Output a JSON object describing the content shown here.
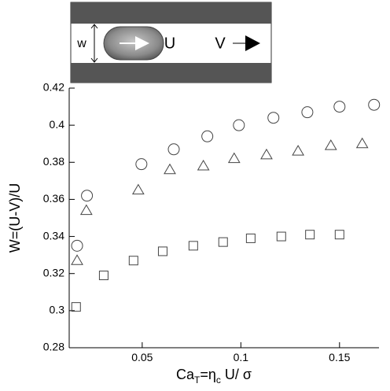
{
  "chart_data": {
    "type": "scatter",
    "xlabel": [
      "Ca",
      "T",
      "=η",
      "c",
      " U/ σ"
    ],
    "ylabel": "W=(U-V)/U",
    "xlim": [
      0.013,
      0.17
    ],
    "ylim": [
      0.28,
      0.42
    ],
    "xticks": [
      0.05,
      0.1,
      0.15
    ],
    "yticks": [
      0.28,
      0.3,
      0.32,
      0.34,
      0.36,
      0.38,
      0.4,
      0.42
    ],
    "series": [
      {
        "marker": "circle",
        "color": "#444444",
        "x": [
          0.017,
          0.022,
          0.0496,
          0.066,
          0.083,
          0.099,
          0.1165,
          0.1337,
          0.15,
          0.1675
        ],
        "values": [
          0.335,
          0.362,
          0.379,
          0.387,
          0.394,
          0.4,
          0.404,
          0.407,
          0.41,
          0.411
        ]
      },
      {
        "marker": "triangle",
        "color": "#444444",
        "x": [
          0.017,
          0.0217,
          0.048,
          0.064,
          0.081,
          0.0966,
          0.113,
          0.129,
          0.1456,
          0.1615
        ],
        "values": [
          0.327,
          0.354,
          0.365,
          0.376,
          0.378,
          0.382,
          0.384,
          0.386,
          0.389,
          0.39
        ]
      },
      {
        "marker": "square",
        "color": "#444444",
        "x": [
          0.0165,
          0.0305,
          0.0456,
          0.0604,
          0.0759,
          0.091,
          0.105,
          0.1205,
          0.135,
          0.15
        ],
        "values": [
          0.302,
          0.319,
          0.327,
          0.332,
          0.335,
          0.337,
          0.339,
          0.34,
          0.341,
          0.341
        ]
      }
    ]
  },
  "inset": {
    "width_label": "w",
    "droplet_label": "U",
    "wall_label": "V"
  }
}
